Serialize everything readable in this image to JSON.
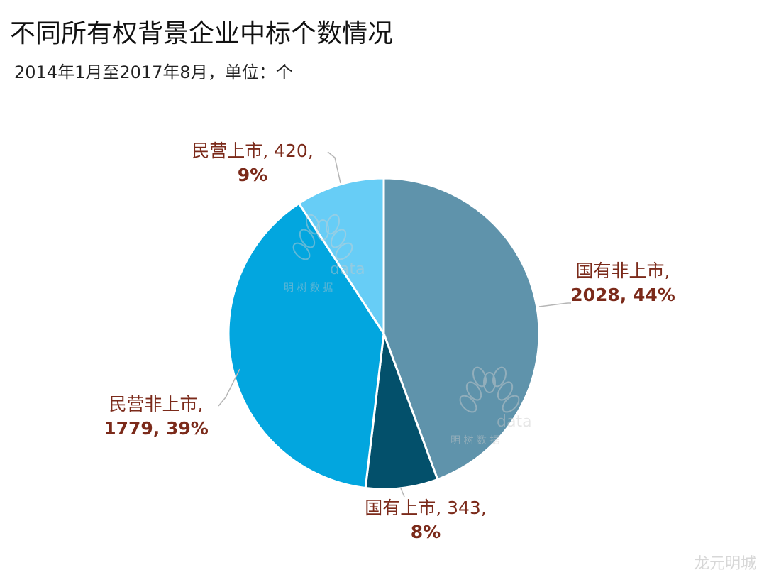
{
  "header": {
    "title": "不同所有权背景企业中标个数情况",
    "subtitle": "2014年1月至2017年8月，单位：个"
  },
  "chart_data": {
    "type": "pie",
    "title": "不同所有权背景企业中标个数情况",
    "subtitle": "2014年1月至2017年8月，单位：个",
    "slices": [
      {
        "name": "国有非上市",
        "value": 2028,
        "percent": "44%",
        "color": "#5f93ab",
        "label_line1": "国有非上市,",
        "label_line2": "2028, 44%"
      },
      {
        "name": "国有上市",
        "value": 343,
        "percent": "8%",
        "color": "#03506b",
        "label_line1": "国有上市, 343,",
        "label_line2": "8%"
      },
      {
        "name": "民营非上市",
        "value": 1779,
        "percent": "39%",
        "color": "#02a6df",
        "label_line1": "民营非上市,",
        "label_line2": "1779, 39%"
      },
      {
        "name": "民营上市",
        "value": 420,
        "percent": "9%",
        "color": "#67cdf6",
        "label_line1": "民营上市, 420,",
        "label_line2": "9%"
      }
    ]
  },
  "watermarks": {
    "logo_text": "data",
    "logo_sub": "明 树 数 据",
    "corner": "龙元明城"
  }
}
